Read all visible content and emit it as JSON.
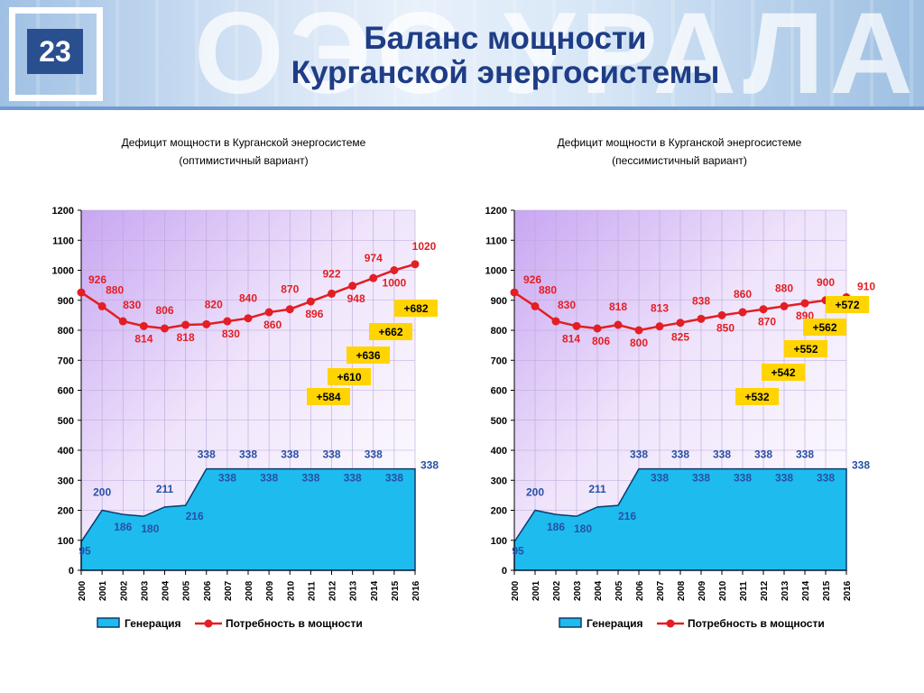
{
  "slide": {
    "number": "23",
    "banner_text": "ОЭС УРАЛА",
    "title_line1": "Баланс мощности",
    "title_line2": "Курганской энергосистемы"
  },
  "colors": {
    "title": "#1f3d86",
    "generation_fill": "#1ebbef",
    "generation_stroke": "#0d3b6e",
    "demand_line": "#e31e24",
    "label_blue": "#2950a3",
    "label_red": "#e31e24",
    "badge_fill": "#ffd400"
  },
  "legend": {
    "generation": "Генерация",
    "demand": "Потребность в мощности"
  },
  "chart_data": [
    {
      "type": "area",
      "title": "Дефицит мощности в Курганской  энергосистеме",
      "subtitle": "(оптимистичный вариант)",
      "x": [
        "2000",
        "2001",
        "2002",
        "2003",
        "2004",
        "2005",
        "2006",
        "2007",
        "2008",
        "2009",
        "2010",
        "2011",
        "2012",
        "2013",
        "2014",
        "2015",
        "2016"
      ],
      "ylim": [
        0,
        1200
      ],
      "yticks": [
        0,
        100,
        200,
        300,
        400,
        500,
        600,
        700,
        800,
        900,
        1000,
        1100,
        1200
      ],
      "series": [
        {
          "name": "Генерация",
          "type": "area",
          "values": [
            95,
            200,
            186,
            180,
            211,
            216,
            338,
            338,
            338,
            338,
            338,
            338,
            338,
            338,
            338,
            338,
            338
          ],
          "labels": [
            "95",
            "200",
            "186",
            "180",
            "211",
            "216",
            "338",
            "338",
            "338",
            "338",
            "338",
            "338",
            "338",
            "338",
            "338",
            "338",
            "338"
          ]
        },
        {
          "name": "Потребность в мощности",
          "type": "line",
          "values": [
            926,
            880,
            830,
            814,
            806,
            818,
            820,
            830,
            840,
            860,
            870,
            896,
            922,
            948,
            974,
            1000,
            1020
          ],
          "labels": [
            "926",
            "880",
            "830",
            "814",
            "806",
            "818",
            "820",
            "830",
            "840",
            "860",
            "870",
            "896",
            "922",
            "948",
            "974",
            "1000",
            "1020"
          ]
        }
      ],
      "deficits": [
        {
          "year": "2012",
          "label": "+584"
        },
        {
          "year": "2013",
          "label": "+610"
        },
        {
          "year": "2014",
          "label": "+636"
        },
        {
          "year": "2015",
          "label": "+662"
        },
        {
          "year": "2016",
          "label": "+682"
        }
      ]
    },
    {
      "type": "area",
      "title": "Дефицит мощности в Курганской  энергосистеме",
      "subtitle": "(пессимистичный вариант)",
      "x": [
        "2000",
        "2001",
        "2002",
        "2003",
        "2004",
        "2005",
        "2006",
        "2007",
        "2008",
        "2009",
        "2010",
        "2011",
        "2012",
        "2013",
        "2014",
        "2015",
        "2016"
      ],
      "ylim": [
        0,
        1200
      ],
      "yticks": [
        0,
        100,
        200,
        300,
        400,
        500,
        600,
        700,
        800,
        900,
        1000,
        1100,
        1200
      ],
      "series": [
        {
          "name": "Генерация",
          "type": "area",
          "values": [
            95,
            200,
            186,
            180,
            211,
            216,
            338,
            338,
            338,
            338,
            338,
            338,
            338,
            338,
            338,
            338,
            338
          ],
          "labels": [
            "95",
            "200",
            "186",
            "180",
            "211",
            "216",
            "338",
            "338",
            "338",
            "338",
            "338",
            "338",
            "338",
            "338",
            "338",
            "338",
            "338"
          ]
        },
        {
          "name": "Потребность в мощности",
          "type": "line",
          "values": [
            926,
            880,
            830,
            814,
            806,
            818,
            800,
            813,
            825,
            838,
            850,
            860,
            870,
            880,
            890,
            900,
            910
          ],
          "labels": [
            "926",
            "880",
            "830",
            "814",
            "806",
            "818",
            "800",
            "813",
            "825",
            "838",
            "850",
            "860",
            "870",
            "880",
            "890",
            "900",
            "910"
          ]
        }
      ],
      "deficits": [
        {
          "year": "2012",
          "label": "+532"
        },
        {
          "year": "2013",
          "label": "+542"
        },
        {
          "year": "2014",
          "label": "+552"
        },
        {
          "year": "2015",
          "label": "+562"
        },
        {
          "year": "2016",
          "label": "+572"
        }
      ]
    }
  ]
}
